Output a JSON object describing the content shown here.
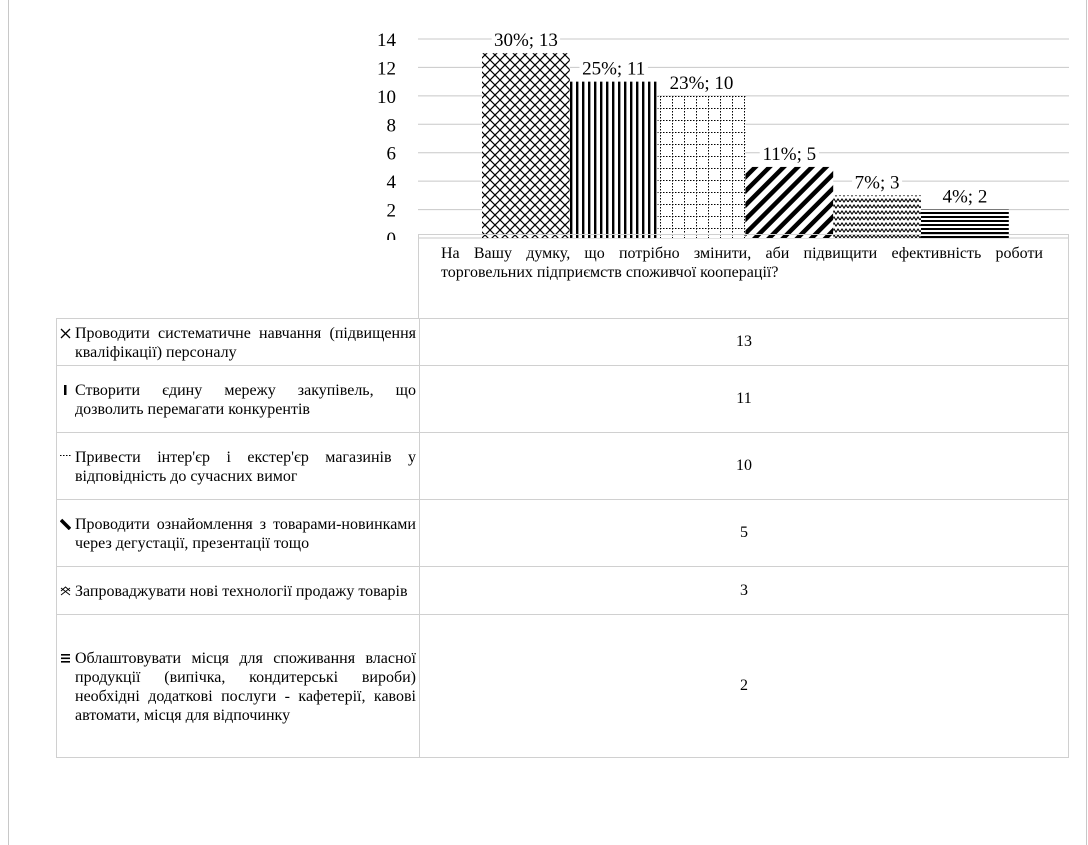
{
  "chart_data": {
    "type": "bar",
    "category": "На Вашу думку, що потрібно змінити, аби підвищити ефективність роботи торговельних підприємств споживчої кооперації?",
    "ylim": [
      0,
      14
    ],
    "yticks": [
      "0",
      "2",
      "4",
      "6",
      "8",
      "10",
      "12",
      "14"
    ],
    "series": [
      {
        "name": "Проводити систематичне навчання (підвищення кваліфікації) персоналу",
        "value": 13,
        "label": "30%; 13",
        "pattern": "diamond-lattice",
        "icon": "lattice-swatch-icon"
      },
      {
        "name": "Створити єдину мережу закупівель, що дозволить перемагати конкурентів",
        "value": 11,
        "label": "25%; 11",
        "pattern": "vertical-stripes",
        "icon": "vertical-stripes-swatch-icon"
      },
      {
        "name": "Привести інтер'єр і екстер'єр магазинів у відповідність до сучасних вимог",
        "value": 10,
        "label": "23%; 10",
        "pattern": "dotted-grid",
        "icon": "dotted-grid-swatch-icon"
      },
      {
        "name": "Проводити ознайомлення з товарами-новинками через дегустації, презентації тощо",
        "value": 5,
        "label": "11%; 5",
        "pattern": "diagonal-stripes",
        "icon": "diagonal-stripes-swatch-icon"
      },
      {
        "name": "Запроваджувати нові технології продажу товарів",
        "value": 3,
        "label": "7%; 3",
        "pattern": "zigzag",
        "icon": "zigzag-swatch-icon"
      },
      {
        "name": "Облаштовувати місця для споживання власної продукції (випічка, кондитерські вироби) необхідні додаткові послуги - кафетерії, кавові автомати, місця для відпочинку",
        "value": 2,
        "label": "4%; 2",
        "pattern": "horizontal-stripes",
        "icon": "horizontal-stripes-swatch-icon"
      }
    ],
    "grid": true,
    "legend": "table-below"
  }
}
